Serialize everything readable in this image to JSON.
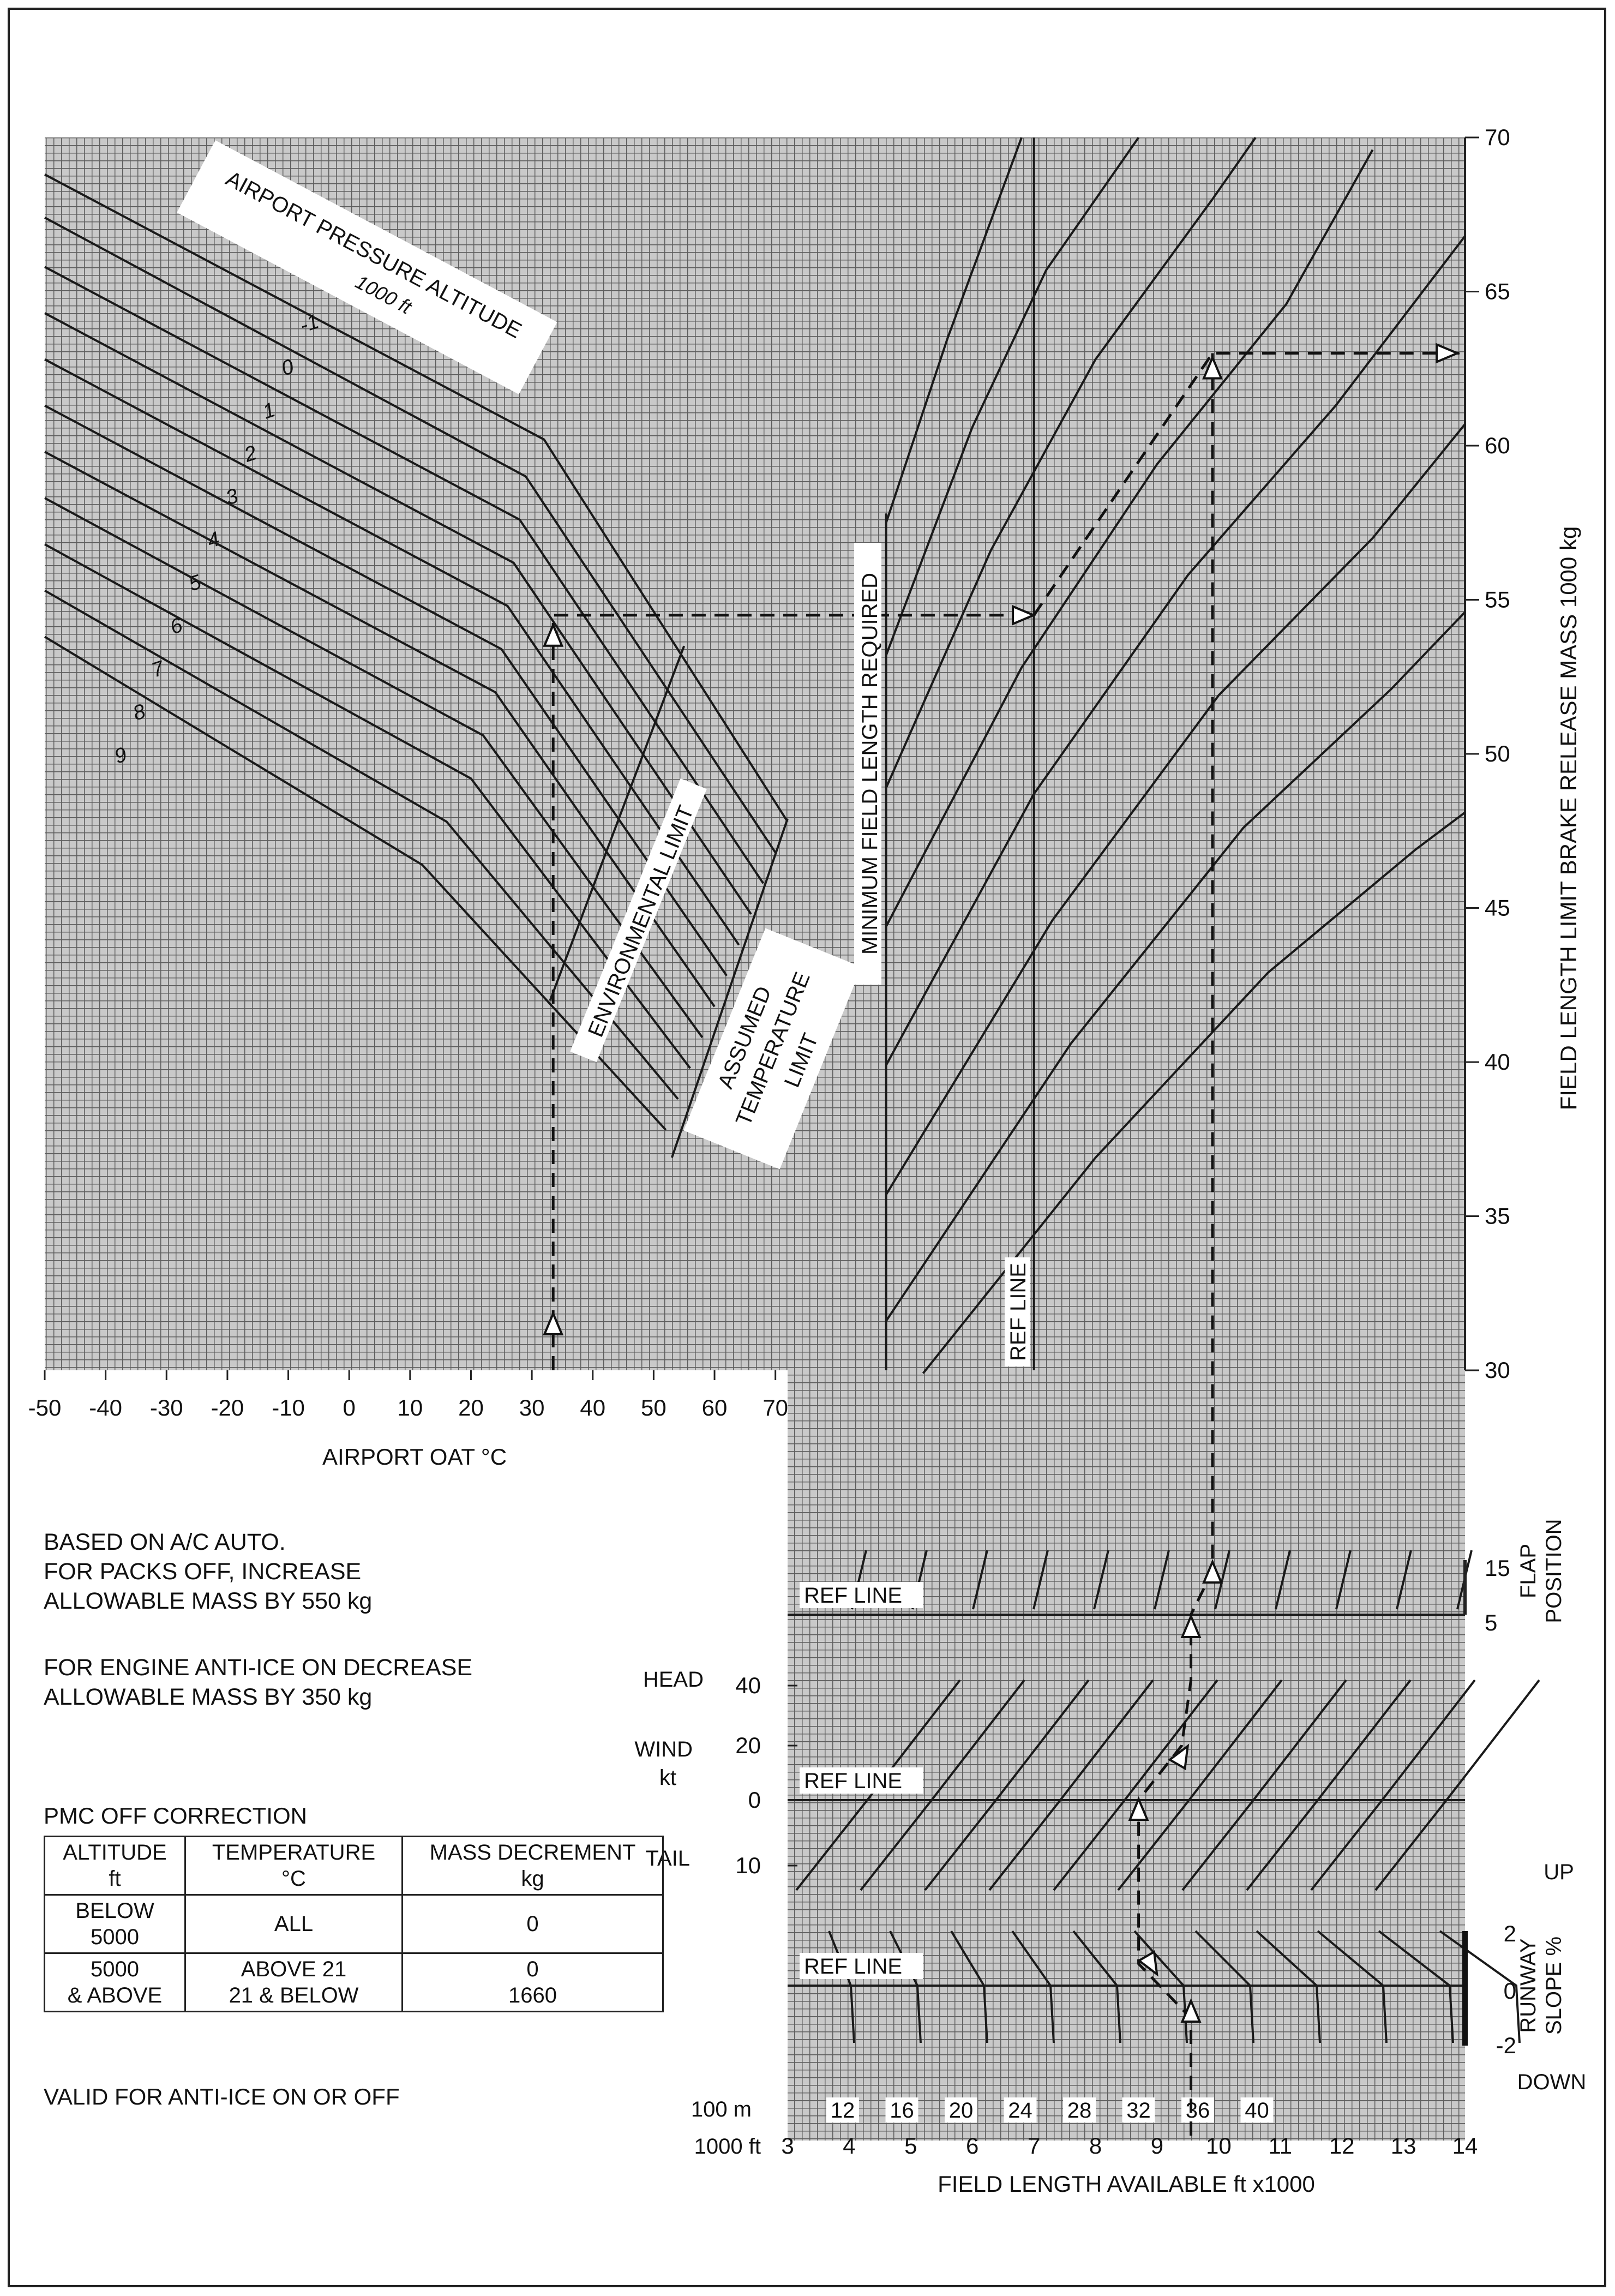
{
  "chart_data": [
    {
      "panel": "temperature",
      "type": "line",
      "xlabel": "AIRPORT OAT  °C",
      "x_ticks": [
        "-50",
        "-40",
        "-30",
        "-20",
        "-10",
        "0",
        "10",
        "20",
        "30",
        "40",
        "50",
        "60",
        "70"
      ],
      "xlim": [
        -50,
        72
      ],
      "family_label_1": "AIRPORT PRESSURE ALTITUDE",
      "family_label_2": "1000 ft",
      "env_label": "ENVIRONMENTAL LIMIT",
      "assumed_label_1": "ASSUMED",
      "assumed_label_2": "TEMPERATURE",
      "assumed_label_3": "LIMIT",
      "series": [
        {
          "name": "-1",
          "points": [
            [
              -50,
              68.8
            ],
            [
              32,
              60.2
            ],
            [
              72,
              47.8
            ]
          ]
        },
        {
          "name": "0",
          "points": [
            [
              -50,
              67.4
            ],
            [
              29,
              59.0
            ],
            [
              70,
              46.8
            ]
          ]
        },
        {
          "name": "1",
          "points": [
            [
              -50,
              65.8
            ],
            [
              28,
              57.6
            ],
            [
              68,
              45.8
            ]
          ]
        },
        {
          "name": "2",
          "points": [
            [
              -50,
              64.3
            ],
            [
              27,
              56.2
            ],
            [
              66,
              44.8
            ]
          ]
        },
        {
          "name": "3",
          "points": [
            [
              -50,
              62.8
            ],
            [
              26,
              54.8
            ],
            [
              64,
              43.8
            ]
          ]
        },
        {
          "name": "4",
          "points": [
            [
              -50,
              61.3
            ],
            [
              25,
              53.4
            ],
            [
              62,
              42.8
            ]
          ]
        },
        {
          "name": "5",
          "points": [
            [
              -50,
              59.8
            ],
            [
              24,
              52.0
            ],
            [
              60,
              41.8
            ]
          ]
        },
        {
          "name": "6",
          "points": [
            [
              -50,
              58.3
            ],
            [
              22,
              50.6
            ],
            [
              58,
              40.8
            ]
          ]
        },
        {
          "name": "7",
          "points": [
            [
              -50,
              56.8
            ],
            [
              20,
              49.2
            ],
            [
              56,
              39.8
            ]
          ]
        },
        {
          "name": "8",
          "points": [
            [
              -50,
              55.3
            ],
            [
              16,
              47.8
            ],
            [
              54,
              38.8
            ]
          ]
        },
        {
          "name": "9",
          "points": [
            [
              -50,
              53.8
            ],
            [
              12,
              46.4
            ],
            [
              52,
              37.8
            ]
          ]
        }
      ],
      "environmental_limit": [
        [
          33,
          42.0
        ],
        [
          55,
          53.5
        ]
      ],
      "assumed_temperature_limit": [
        [
          53,
          36.9
        ],
        [
          72,
          47.9
        ]
      ],
      "example_oat": 33.5
    },
    {
      "panel": "field-length",
      "type": "line",
      "ylabel": "FIELD LENGTH LIMIT BRAKE RELEASE MASS  1000 kg",
      "y_ticks": [
        "30",
        "35",
        "40",
        "45",
        "50",
        "55",
        "60",
        "65",
        "70"
      ],
      "ylim": [
        30,
        70
      ],
      "min_label": "MINIMUM FIELD LENGTH REQUIRED",
      "ref_label": "REF LINE",
      "example_mass_entry": 54.5,
      "example_mass_result": 63.0
    },
    {
      "panel": "corrections",
      "type": "line",
      "xlabel": "FIELD LENGTH AVAILABLE  ft x1000",
      "x_ft_ticks": [
        "3",
        "4",
        "5",
        "6",
        "7",
        "8",
        "9",
        "10",
        "11",
        "12",
        "13",
        "14"
      ],
      "x_m_ticks": [
        "12",
        "16",
        "20",
        "24",
        "28",
        "32",
        "36",
        "40"
      ],
      "x_ft_unit": "1000 ft",
      "x_m_unit": "100 m",
      "flap_ticks": [
        "15",
        "5"
      ],
      "flap_label_1": "FLAP",
      "flap_label_2": "POSITION",
      "wind_ticks": [
        "40",
        "20",
        "0",
        "10"
      ],
      "wind_head": "HEAD",
      "wind_tail": "TAIL",
      "wind_label_1": "WIND",
      "wind_label_2": "kt",
      "slope_ticks": [
        "2",
        "0",
        "-2"
      ],
      "slope_up": "UP",
      "slope_down": "DOWN",
      "slope_label_1": "RUNWAY",
      "slope_label_2": "SLOPE %",
      "ref_label": "REF LINE"
    }
  ],
  "notes": {
    "line1": "BASED ON A/C AUTO.",
    "line2": "FOR PACKS OFF, INCREASE",
    "line3": "ALLOWABLE MASS BY 550 kg",
    "line4": "FOR ENGINE ANTI-ICE ON DECREASE",
    "line5": "ALLOWABLE MASS BY 350 kg"
  },
  "pmc": {
    "title": "PMC OFF CORRECTION",
    "headers": {
      "altitude_1": "ALTITUDE",
      "altitude_2": "ft",
      "temperature_1": "TEMPERATURE",
      "temperature_2": "°C",
      "mass_1": "MASS DECREMENT",
      "mass_2": "kg"
    },
    "row1": {
      "alt_1": "BELOW",
      "alt_2": "5000",
      "temp": "ALL",
      "mass": "0"
    },
    "row2": {
      "alt_1": "5000",
      "alt_2": "& ABOVE",
      "temp_1": "ABOVE 21",
      "temp_2": "21 & BELOW",
      "mass_1": "0",
      "mass_2": "1660"
    },
    "footer": "VALID FOR ANTI-ICE ON OR OFF"
  }
}
